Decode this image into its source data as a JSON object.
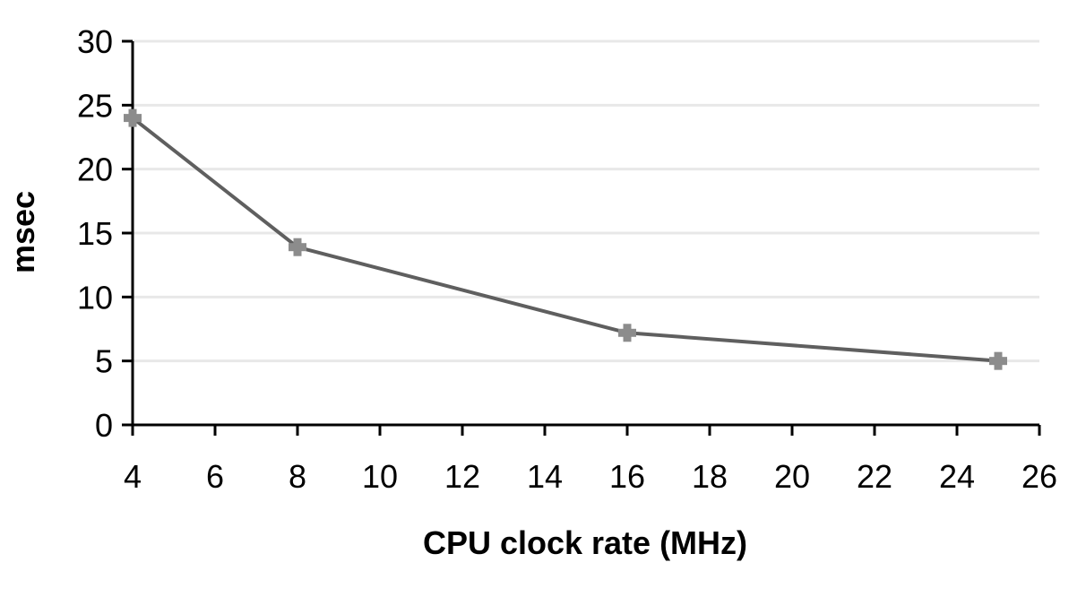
{
  "chart_data": {
    "type": "line",
    "title": "",
    "xlabel": "CPU clock rate (MHz)",
    "ylabel": "msec",
    "xlim": [
      4,
      26
    ],
    "ylim": [
      0,
      30
    ],
    "xticks": [
      4,
      6,
      8,
      10,
      12,
      14,
      16,
      18,
      20,
      22,
      24,
      26
    ],
    "yticks": [
      0,
      5,
      10,
      15,
      20,
      25,
      30
    ],
    "grid": "horizontal",
    "legend": "none",
    "series": [
      {
        "color": "#5f5f5f",
        "marker_color": "#8c8c8c",
        "marker": "plus",
        "x": [
          4,
          8,
          16,
          25
        ],
        "y": [
          24,
          13.9,
          7.2,
          5
        ]
      }
    ]
  }
}
